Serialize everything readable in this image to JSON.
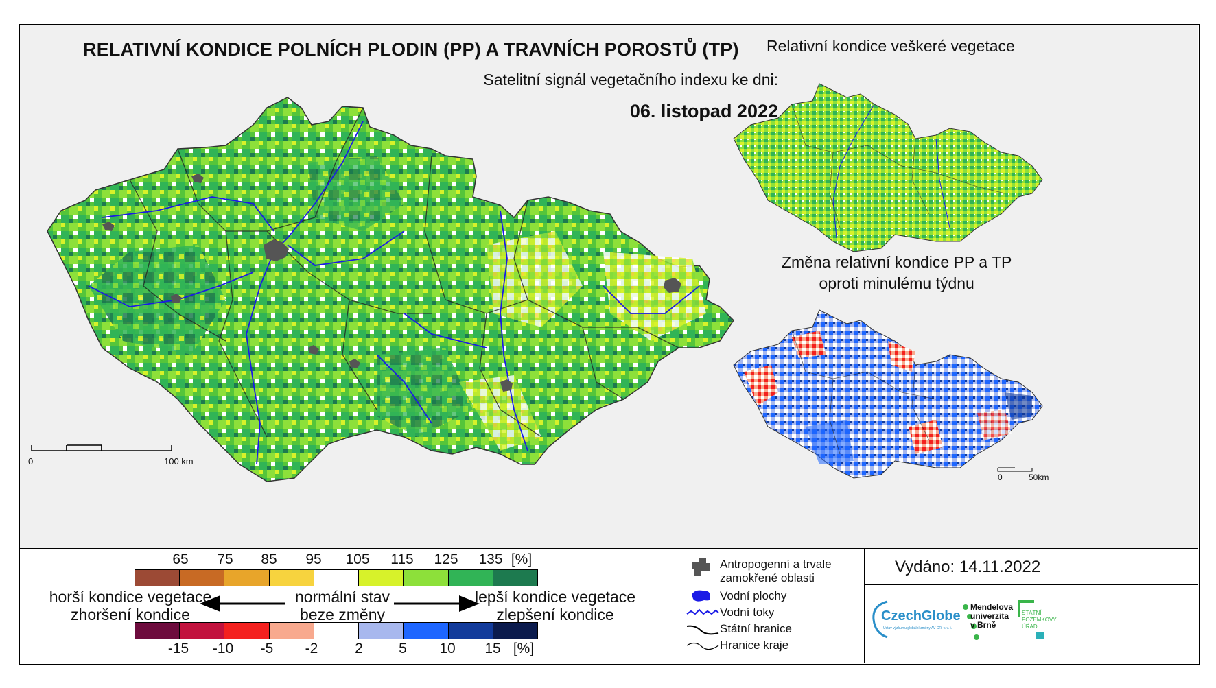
{
  "main_map": {
    "title": "RELATIVNÍ KONDICE POLNÍCH PLODIN (PP) A TRAVNÍCH POROSTŮ (TP)",
    "subtitle": "Satelitní signál vegetačního indexu ke dni:",
    "date": "06. listopad 2022",
    "scale_start": "0",
    "scale_end": "100 km"
  },
  "inset_vegetation": {
    "title": "Relativní kondice veškeré vegetace"
  },
  "inset_change": {
    "title_line1": "Změna relativní kondice PP a TP",
    "title_line2": "oproti minulému týdnu",
    "scale_start": "0",
    "scale_end": "50km"
  },
  "condition_legend": {
    "ticks": [
      "65",
      "75",
      "85",
      "95",
      "105",
      "115",
      "125",
      "135"
    ],
    "unit": "[%]",
    "colors": [
      "#9c4a35",
      "#c86a24",
      "#e8a52a",
      "#f7d33e",
      "#ffffff",
      "#d7f22a",
      "#8de03a",
      "#31b456",
      "#1d7a4f"
    ]
  },
  "change_legend": {
    "ticks": [
      "-15",
      "-10",
      "-5",
      "-2",
      "2",
      "5",
      "10",
      "15"
    ],
    "unit": "[%]",
    "colors": [
      "#6d0b3d",
      "#c2123e",
      "#f4211f",
      "#f8a98e",
      "#ffffff",
      "#a8b8ee",
      "#1e66ff",
      "#123b9b",
      "#0b1b4d"
    ]
  },
  "descriptions": {
    "worse_line1": "horší kondice vegetace",
    "worse_line2": "zhoršení kondice",
    "normal_line1": "normální stav",
    "normal_line2": "beze změny",
    "better_line1": "lepší kondice vegetace",
    "better_line2": "zlepšení kondice"
  },
  "map_legend": {
    "anthropogenic_line1": "Antropogenní a trvale",
    "anthropogenic_line2": "zamokřené oblasti",
    "water_bodies": "Vodní plochy",
    "rivers": "Vodní toky",
    "state_border": "Státní hranice",
    "region_border": "Hranice kraje"
  },
  "issued": "Vydáno: 14.11.2022",
  "logos": {
    "czechglobe": "CzechGlobe",
    "czechglobe_sub": "Ústav výzkumu globální změny AV ČR, v. v. i.",
    "mendel_line1": "Mendelova",
    "mendel_line2": "univerzita",
    "mendel_line3": "v Brně",
    "spu_line1": "STÁTNÍ",
    "spu_line2": "POZEMKOVÝ",
    "spu_line3": "ÚŘAD"
  }
}
